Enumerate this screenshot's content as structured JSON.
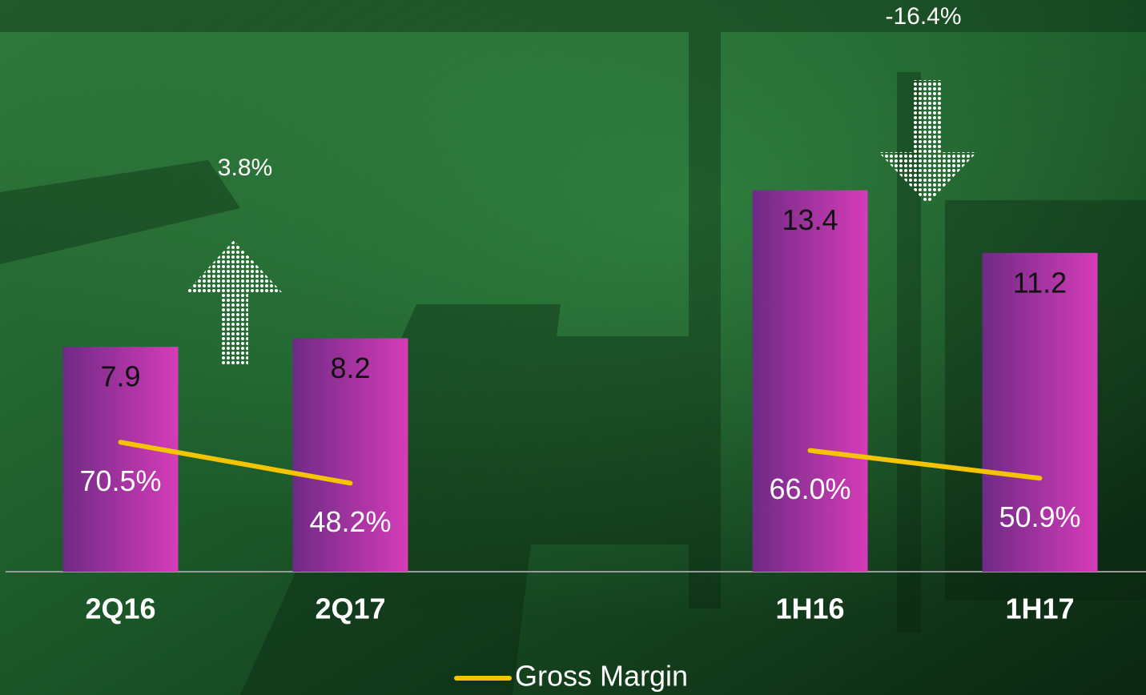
{
  "chart_data": {
    "type": "bar",
    "categories": [
      "2Q16",
      "2Q17",
      null,
      "1H16",
      "1H17"
    ],
    "series": [
      {
        "type": "bar",
        "color": "#d63cb8",
        "values": [
          7.9,
          8.2,
          null,
          13.4,
          11.2
        ]
      },
      {
        "type": "line",
        "name": "Gross Margin",
        "axis": "y2",
        "color": "#f5c400",
        "values": [
          70.5,
          48.2,
          null,
          66.0,
          50.9
        ],
        "value_labels": [
          "70.5%",
          "48.2%",
          null,
          "66.0%",
          "50.9%"
        ]
      }
    ],
    "ylim": [
      0,
      20
    ],
    "y2lim": [
      0,
      310
    ],
    "annotations": [
      "3.8%",
      "-16.4%"
    ],
    "legend": "bottom"
  }
}
